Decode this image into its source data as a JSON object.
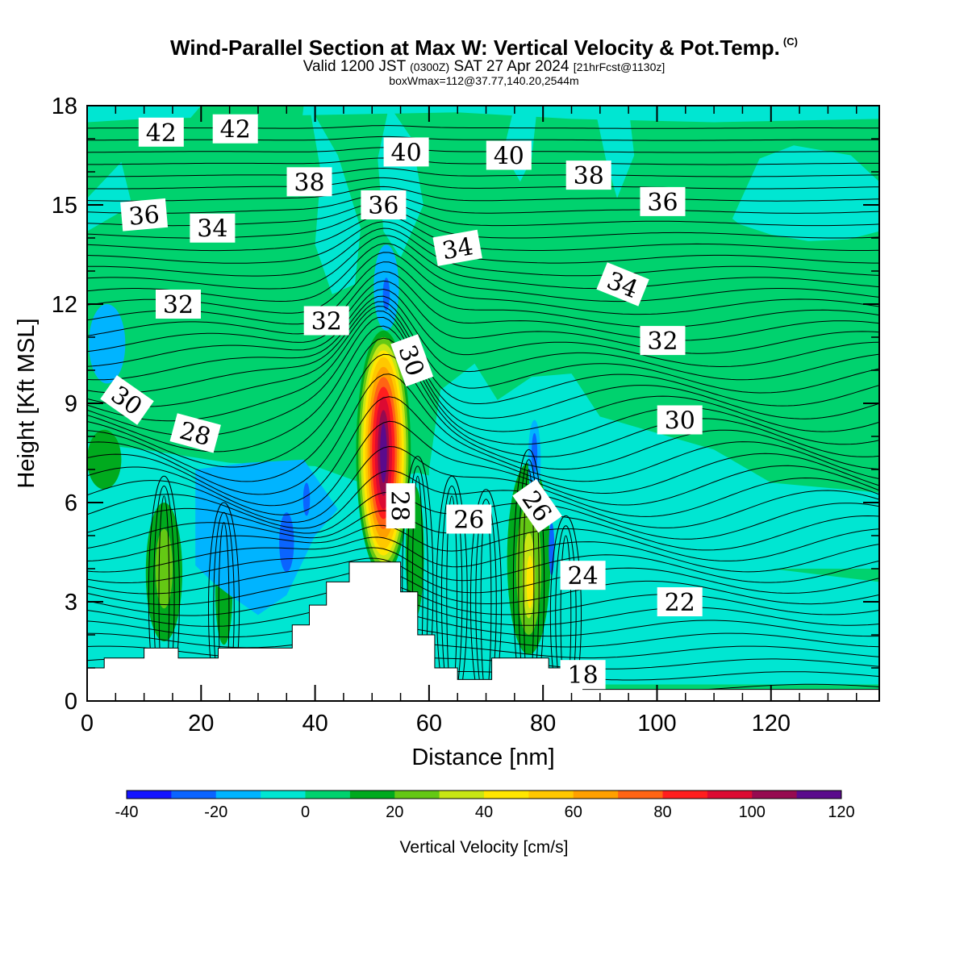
{
  "title": {
    "main": "Wind-Parallel Section at Max W: Vertical Velocity & Pot.Temp.",
    "copyright": "(C)",
    "valid_prefix": "Valid 1200 JST",
    "valid_utc": "(0300Z)",
    "valid_date": "SAT 27 Apr 2024",
    "forecast": "[21hrFcst@1130z]",
    "box_info": "boxWmax=112@37.77,140.20,2544m"
  },
  "chart_data": {
    "type": "heatmap",
    "xlabel": "Distance [nm]",
    "ylabel": "Height [Kft MSL]",
    "xlim": [
      0,
      139
    ],
    "ylim": [
      0,
      18
    ],
    "x_ticks": [
      0,
      20,
      40,
      60,
      80,
      100,
      120
    ],
    "y_ticks": [
      0,
      3,
      6,
      9,
      12,
      15,
      18
    ],
    "colorbar": {
      "label": "Vertical Velocity [cm/s]",
      "range": [
        -40,
        120
      ],
      "tick_values": [
        -40,
        -20,
        0,
        20,
        40,
        60,
        80,
        100,
        120
      ],
      "colors": [
        "#1414ff",
        "#0a64ff",
        "#00b4ff",
        "#00e6d2",
        "#00d26e",
        "#00aa1e",
        "#64c814",
        "#c8e614",
        "#ffe600",
        "#ffc800",
        "#ffa000",
        "#ff6414",
        "#ff1e1e",
        "#dc0a32",
        "#960a50",
        "#5a0a8c"
      ]
    },
    "terrain_profile": {
      "x": [
        0,
        3,
        3,
        10,
        10,
        16,
        16,
        23,
        23,
        36,
        36,
        39,
        39,
        42,
        42,
        46,
        46,
        55,
        55,
        58,
        58,
        61,
        61,
        65,
        65,
        71,
        71,
        81,
        81,
        87,
        87,
        139
      ],
      "height": [
        1.0,
        1.0,
        1.3,
        1.3,
        1.6,
        1.6,
        1.3,
        1.3,
        1.6,
        1.6,
        2.3,
        2.3,
        2.9,
        2.9,
        3.6,
        3.6,
        4.2,
        4.2,
        3.3,
        3.3,
        2.0,
        2.0,
        1.0,
        1.0,
        0.65,
        0.65,
        1.3,
        1.3,
        1.0,
        1.0,
        0.35,
        0.35
      ]
    },
    "vertical_velocity_features": [
      {
        "x": 52.0,
        "height": 7.4,
        "value": 112
      },
      {
        "x": 77.5,
        "height": 3.7,
        "value": 40
      },
      {
        "x": 13.5,
        "height": 4.0,
        "value": 20
      },
      {
        "x": 35.0,
        "height": 4.8,
        "value": -30
      },
      {
        "x": 52.5,
        "height": 12.2,
        "value": -30
      },
      {
        "x": 78.5,
        "height": 7.5,
        "value": -30
      },
      {
        "x": 81.5,
        "height": 4.6,
        "value": -30
      }
    ],
    "theta_levels": [
      18,
      20,
      22,
      24,
      26,
      28,
      30,
      32,
      34,
      36,
      38,
      40,
      42
    ],
    "theta_labels": [
      {
        "text": "42",
        "x": 13,
        "height": 17.2
      },
      {
        "text": "42",
        "x": 26,
        "height": 17.3
      },
      {
        "text": "40",
        "x": 56,
        "height": 16.6
      },
      {
        "text": "40",
        "x": 74,
        "height": 16.5
      },
      {
        "text": "38",
        "x": 39,
        "height": 15.7
      },
      {
        "text": "38",
        "x": 88,
        "height": 15.9
      },
      {
        "text": "36",
        "x": 10,
        "height": 14.7
      },
      {
        "text": "36",
        "x": 52,
        "height": 15.0
      },
      {
        "text": "36",
        "x": 101,
        "height": 15.1
      },
      {
        "text": "34",
        "x": 22,
        "height": 14.3
      },
      {
        "text": "34",
        "x": 65,
        "height": 13.7
      },
      {
        "text": "34",
        "x": 94,
        "height": 12.6
      },
      {
        "text": "32",
        "x": 16,
        "height": 12.0
      },
      {
        "text": "32",
        "x": 42,
        "height": 11.5
      },
      {
        "text": "32",
        "x": 101,
        "height": 10.9
      },
      {
        "text": "30",
        "x": 7,
        "height": 9.1
      },
      {
        "text": "30",
        "x": 57,
        "height": 10.3
      },
      {
        "text": "30",
        "x": 104,
        "height": 8.5
      },
      {
        "text": "28",
        "x": 19,
        "height": 8.1
      },
      {
        "text": "28",
        "x": 55,
        "height": 5.9
      },
      {
        "text": "26",
        "x": 67,
        "height": 5.5
      },
      {
        "text": "26",
        "x": 79,
        "height": 5.9
      },
      {
        "text": "24",
        "x": 87,
        "height": 3.8
      },
      {
        "text": "22",
        "x": 104,
        "height": 3.0
      },
      {
        "text": "18",
        "x": 87,
        "height": 0.8
      }
    ]
  }
}
